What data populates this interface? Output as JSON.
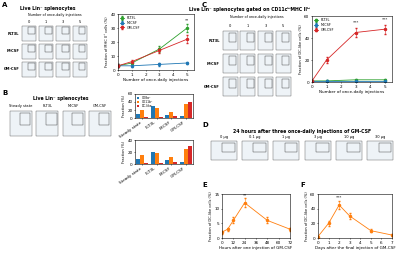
{
  "chart_data": [
    {
      "panel": "A",
      "type": "flow_grid",
      "title": "Live Lin⁻ splenocytes",
      "column_label": "Number of once-daily injections",
      "rows": [
        "FLT3L",
        "M-CSF",
        "GM-CSF"
      ],
      "columns": [
        "0",
        "1",
        "3",
        "5"
      ]
    },
    {
      "panel": "A",
      "type": "line",
      "x_label": "Number of once-daily injections",
      "y_label": "Fraction of MHC II⁺ cells (%)",
      "x": [
        0,
        1,
        3,
        5
      ],
      "xlim": [
        0,
        5.5
      ],
      "xticks": [
        0,
        1,
        2,
        3,
        4,
        5
      ],
      "ylim": [
        0,
        40
      ],
      "yticks": [
        0,
        10,
        20,
        30,
        40
      ],
      "legend": "upper left",
      "series": [
        {
          "name": "FLT3L",
          "color": "#2ca02c",
          "marker": "o",
          "values": [
            3,
            5,
            15,
            30
          ],
          "errors": [
            1,
            1,
            2,
            3
          ]
        },
        {
          "name": "M-CSF",
          "color": "#1f77b4",
          "marker": "o",
          "values": [
            3,
            3,
            4,
            5
          ],
          "errors": [
            1,
            1,
            1,
            1
          ]
        },
        {
          "name": "GM-CSF",
          "color": "#d62728",
          "marker": "o",
          "values": [
            3,
            6,
            14,
            22
          ],
          "errors": [
            1,
            1,
            2,
            3
          ]
        }
      ],
      "annotations": [
        {
          "x": 5,
          "y": 34,
          "text": "**"
        }
      ]
    },
    {
      "panel": "B",
      "type": "flow_grid",
      "title": "Live Lin⁻ splenocytes",
      "rows": [],
      "columns": [
        "Steady state",
        "FLT3L",
        "M-CSF",
        "GM-CSF"
      ]
    },
    {
      "panel": "B",
      "type": "bar",
      "y_label": "Fraction (%)",
      "categories": [
        "Steady state",
        "FLT3L",
        "M-CSF",
        "GM-CSF"
      ],
      "ylim": [
        0,
        60
      ],
      "yticks": [
        0,
        20,
        40,
        60
      ],
      "legend": "upper left",
      "series": [
        {
          "name": "CD8α⁺",
          "color": "#1f77b4",
          "values": [
            10,
            30,
            8,
            5
          ]
        },
        {
          "name": "CD11b⁺",
          "color": "#ff7f0e",
          "values": [
            20,
            25,
            15,
            35
          ]
        },
        {
          "name": "DC-like",
          "color": "#d62728",
          "values": [
            2,
            3,
            4,
            40
          ]
        }
      ]
    },
    {
      "panel": "B",
      "type": "bar",
      "y_label": "Fraction (%)",
      "categories": [
        "Steady state",
        "FLT3L",
        "M-CSF",
        "GM-CSF"
      ],
      "ylim": [
        0,
        40
      ],
      "yticks": [
        0,
        20,
        40
      ],
      "series": [
        {
          "name": "CD8α⁺",
          "color": "#1f77b4",
          "values": [
            8,
            20,
            6,
            4
          ]
        },
        {
          "name": "CD11b⁺",
          "color": "#ff7f0e",
          "values": [
            15,
            18,
            12,
            25
          ]
        },
        {
          "name": "DC-like",
          "color": "#d62728",
          "values": [
            1,
            2,
            3,
            30
          ]
        }
      ]
    },
    {
      "panel": "C",
      "type": "flow_grid",
      "title": "Live Lin⁻ splenocytes gated on CD11cʰⁱMHC IIʰⁱ",
      "column_label": "Number of once-daily injections",
      "rows": [
        "FLT3L",
        "M-CSF",
        "GM-CSF"
      ],
      "columns": [
        "0",
        "1",
        "3",
        "5"
      ]
    },
    {
      "panel": "C",
      "type": "line",
      "x_label": "Number of once-daily injections",
      "y_label": "Fraction of DC-like cells (%)",
      "x": [
        0,
        1,
        3,
        5
      ],
      "xlim": [
        0,
        5.5
      ],
      "xticks": [
        0,
        1,
        2,
        3,
        4,
        5
      ],
      "ylim": [
        0,
        60
      ],
      "yticks": [
        0,
        20,
        40,
        60
      ],
      "legend": "upper left",
      "series": [
        {
          "name": "FLT3L",
          "color": "#2ca02c",
          "marker": "o",
          "values": [
            1,
            1,
            2,
            2
          ],
          "errors": [
            0.5,
            0.5,
            0.5,
            0.5
          ]
        },
        {
          "name": "M-CSF",
          "color": "#1f77b4",
          "marker": "o",
          "values": [
            1,
            1,
            1,
            1
          ],
          "errors": [
            0.5,
            0.5,
            0.5,
            0.5
          ]
        },
        {
          "name": "GM-CSF",
          "color": "#d62728",
          "marker": "o",
          "values": [
            1,
            20,
            45,
            48
          ],
          "errors": [
            0.5,
            3,
            4,
            4
          ]
        }
      ],
      "annotations": [
        {
          "x": 3,
          "y": 52,
          "text": "***"
        },
        {
          "x": 5,
          "y": 55,
          "text": "***"
        }
      ]
    },
    {
      "panel": "D",
      "type": "flow_grid",
      "title": "24 hours after three once-daily injections of GM-CSF",
      "rows": [],
      "columns": [
        "0 μg",
        "0.1 μg",
        "1 μg",
        "3 μg",
        "10 μg",
        "30 μg"
      ]
    },
    {
      "panel": "E",
      "type": "line",
      "x_label": "Hours after one injection of GM-CSF",
      "y_label": "Fraction of DC-like cells (%)",
      "x": [
        0,
        6,
        12,
        24,
        48,
        72
      ],
      "xlim": [
        0,
        72
      ],
      "xticks": [
        0,
        12,
        24,
        36,
        48,
        60,
        72
      ],
      "ylim": [
        0,
        15
      ],
      "yticks": [
        0,
        5,
        10,
        15
      ],
      "series": [
        {
          "name": "GM-CSF",
          "color": "#ff7f0e",
          "marker": "o",
          "values": [
            2,
            3,
            6,
            12,
            6,
            3
          ],
          "errors": [
            0.5,
            0.5,
            1,
            1.5,
            1,
            0.5
          ]
        }
      ],
      "annotations": [
        {
          "x": 24,
          "y": 14,
          "text": "**"
        }
      ]
    },
    {
      "panel": "F",
      "type": "line",
      "x_label": "Days after the final injection of GM-CSF",
      "y_label": "Fraction of DC-like cells (%)",
      "x": [
        0,
        1,
        2,
        3,
        5,
        7
      ],
      "xlim": [
        0,
        7
      ],
      "xticks": [
        0,
        1,
        2,
        3,
        4,
        5,
        6,
        7
      ],
      "ylim": [
        0,
        60
      ],
      "yticks": [
        0,
        20,
        40,
        60
      ],
      "series": [
        {
          "name": "GM-CSF",
          "color": "#ff7f0e",
          "marker": "o",
          "values": [
            2,
            20,
            45,
            30,
            10,
            4
          ],
          "errors": [
            0.5,
            3,
            5,
            4,
            2,
            1
          ]
        }
      ],
      "annotations": [
        {
          "x": 2,
          "y": 52,
          "text": "***"
        }
      ]
    }
  ]
}
